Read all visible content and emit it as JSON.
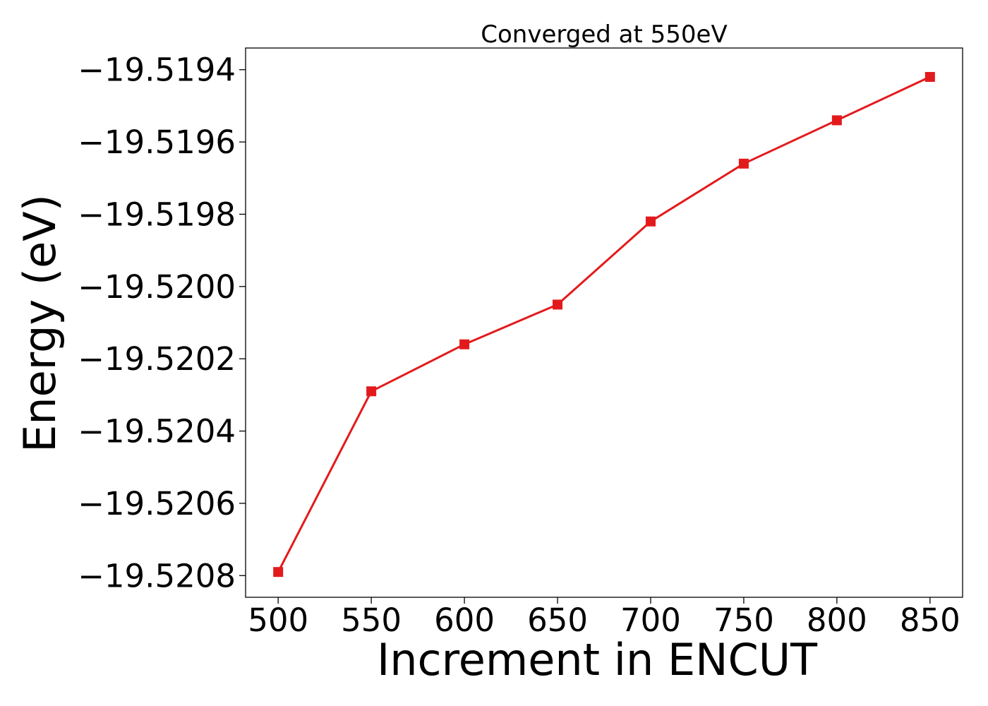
{
  "chart_data": {
    "type": "line",
    "title": "Converged at 550eV",
    "xlabel": "Increment in ENCUT",
    "ylabel": "Energy (eV)",
    "x": [
      500,
      550,
      600,
      650,
      700,
      750,
      800,
      850
    ],
    "series": [
      {
        "values": [
          -19.52079,
          -19.52029,
          -19.52016,
          -19.52005,
          -19.51982,
          -19.51966,
          -19.51954,
          -19.51942
        ],
        "color": "#e31a1c",
        "marker": "square"
      }
    ],
    "xticks": [
      500,
      550,
      600,
      650,
      700,
      750,
      800,
      850
    ],
    "xtick_labels": [
      "500",
      "550",
      "600",
      "650",
      "700",
      "750",
      "800",
      "850"
    ],
    "yticks": [
      -19.5208,
      -19.5206,
      -19.5204,
      -19.5202,
      -19.52,
      -19.5198,
      -19.5196,
      -19.5194
    ],
    "ytick_labels": [
      "−19.5208",
      "−19.5206",
      "−19.5204",
      "−19.5202",
      "−19.5200",
      "−19.5198",
      "−19.5196",
      "−19.5194"
    ],
    "xlim": [
      482.5,
      867.5
    ],
    "ylim": [
      -19.52086,
      -19.51934
    ],
    "grid": false,
    "legend": "none"
  }
}
